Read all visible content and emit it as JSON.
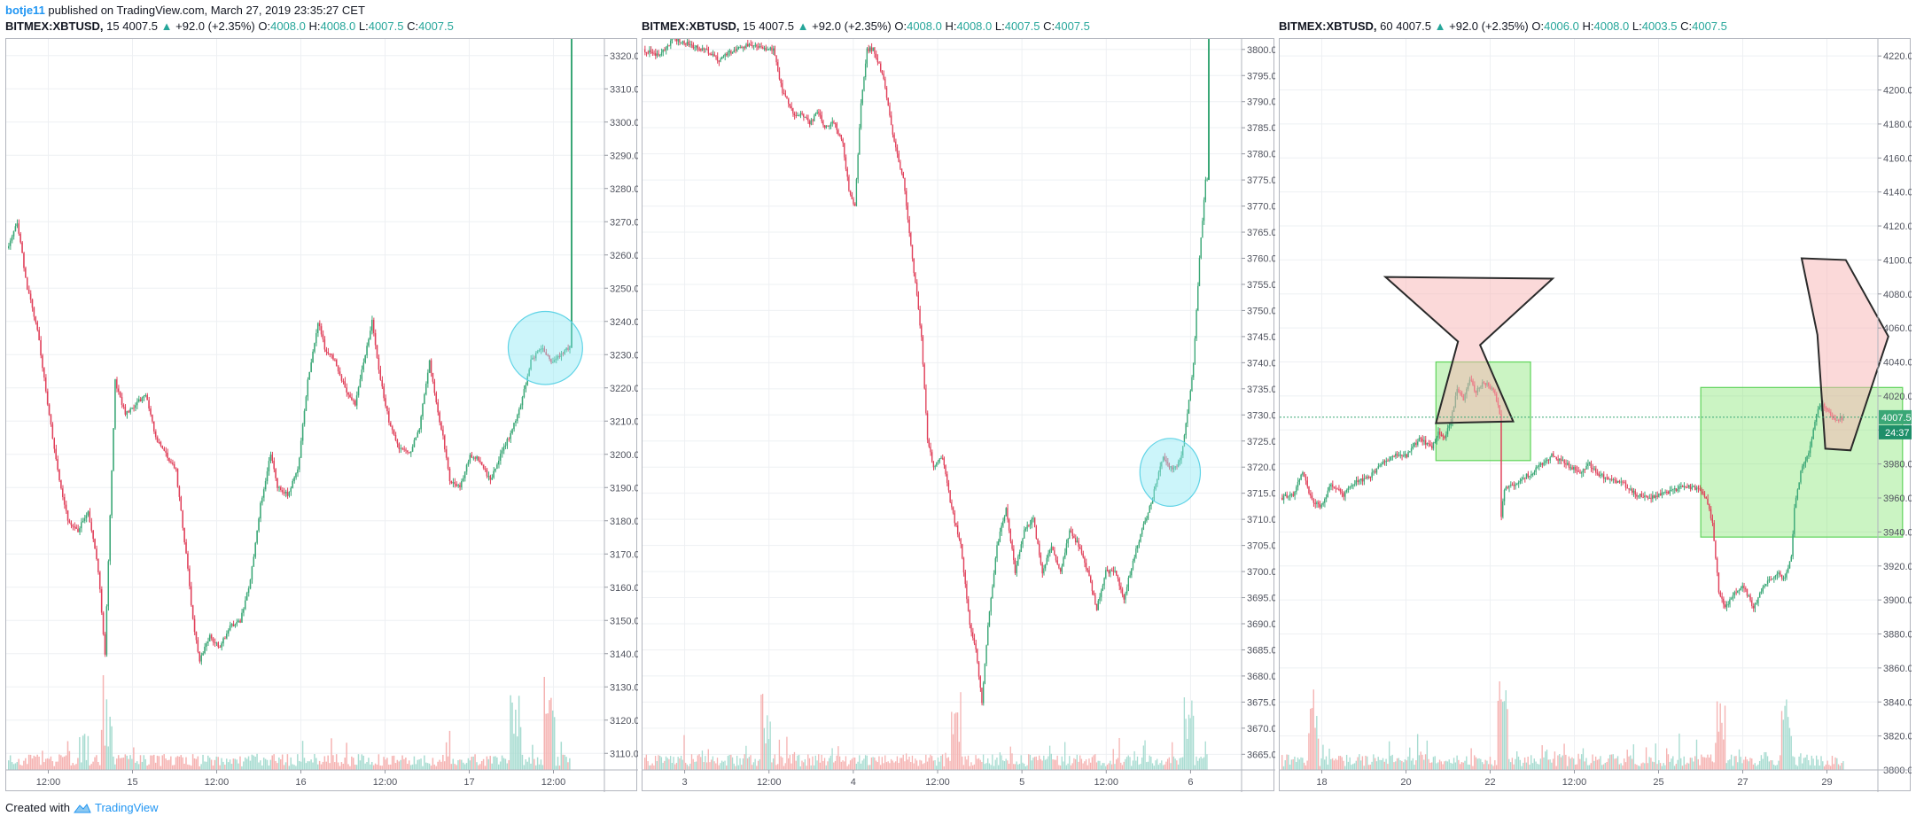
{
  "header": {
    "author": "botje11",
    "published_text": "published on TradingView.com, March 27, 2019 23:35:27 CET"
  },
  "footer": {
    "created_with": "Created with",
    "brand": "TradingView"
  },
  "colors": {
    "up": "#26a69a",
    "down": "#ef5350",
    "up_candle": "#3aa776",
    "down_candle": "#e0405a",
    "grid": "#eef0f3",
    "circle_fill": "#8fe8f5",
    "green_box": "#7ce36a",
    "pink_shape": "#f8b4b4"
  },
  "chart_data": [
    {
      "type": "candlestick",
      "symbol": "BITMEX:XBTUSD",
      "interval": "15",
      "last": "4007.5",
      "change": "+92.0 (+2.35%)",
      "open": "4008.0",
      "high": "4008.0",
      "low": "4007.5",
      "close": "4007.5",
      "ylim": [
        3105,
        3325
      ],
      "yticks": [
        "3320.0",
        "3310.0",
        "3300.0",
        "3290.0",
        "3280.0",
        "3270.0",
        "3260.0",
        "3250.0",
        "3240.0",
        "3230.0",
        "3220.0",
        "3210.0",
        "3200.0",
        "3190.0",
        "3180.0",
        "3170.0",
        "3160.0",
        "3150.0",
        "3140.0",
        "3130.0",
        "3120.0",
        "3110.0"
      ],
      "xticks": [
        "12:00",
        "15",
        "12:00",
        "16",
        "12:00",
        "17",
        "12:00"
      ],
      "path": [
        [
          0,
          3262
        ],
        [
          6,
          3270
        ],
        [
          12,
          3250
        ],
        [
          18,
          3238
        ],
        [
          24,
          3215
        ],
        [
          30,
          3195
        ],
        [
          36,
          3180
        ],
        [
          42,
          3177
        ],
        [
          48,
          3183
        ],
        [
          54,
          3165
        ],
        [
          58,
          3140
        ],
        [
          64,
          3222
        ],
        [
          70,
          3212
        ],
        [
          76,
          3215
        ],
        [
          82,
          3218
        ],
        [
          88,
          3205
        ],
        [
          94,
          3200
        ],
        [
          100,
          3195
        ],
        [
          106,
          3170
        ],
        [
          110,
          3150
        ],
        [
          114,
          3138
        ],
        [
          120,
          3145
        ],
        [
          126,
          3142
        ],
        [
          132,
          3148
        ],
        [
          138,
          3150
        ],
        [
          144,
          3162
        ],
        [
          150,
          3185
        ],
        [
          156,
          3200
        ],
        [
          160,
          3190
        ],
        [
          166,
          3188
        ],
        [
          172,
          3195
        ],
        [
          178,
          3222
        ],
        [
          184,
          3240
        ],
        [
          188,
          3232
        ],
        [
          194,
          3228
        ],
        [
          200,
          3220
        ],
        [
          206,
          3215
        ],
        [
          210,
          3225
        ],
        [
          216,
          3240
        ],
        [
          220,
          3225
        ],
        [
          226,
          3210
        ],
        [
          232,
          3202
        ],
        [
          238,
          3200
        ],
        [
          244,
          3208
        ],
        [
          250,
          3228
        ],
        [
          254,
          3215
        ],
        [
          258,
          3205
        ],
        [
          262,
          3192
        ],
        [
          268,
          3190
        ],
        [
          274,
          3200
        ],
        [
          280,
          3198
        ],
        [
          286,
          3192
        ],
        [
          292,
          3200
        ],
        [
          298,
          3206
        ],
        [
          304,
          3215
        ],
        [
          310,
          3228
        ],
        [
          316,
          3232
        ],
        [
          322,
          3228
        ],
        [
          328,
          3230
        ],
        [
          332,
          3232
        ]
      ],
      "spike": {
        "i": 332,
        "open": 3232,
        "high": 3325
      },
      "volume_peaks": [
        58,
        300,
        320
      ],
      "annotations": [
        {
          "shape": "ellipse",
          "i": 318,
          "price": 3232,
          "rx_i": 22,
          "ry_p": 11
        }
      ]
    },
    {
      "type": "candlestick",
      "symbol": "BITMEX:XBTUSD",
      "interval": "15",
      "last": "4007.5",
      "change": "+92.0 (+2.35%)",
      "open": "4008.0",
      "high": "4008.0",
      "low": "4007.5",
      "close": "4007.5",
      "ylim": [
        3662,
        3802
      ],
      "yticks": [
        "3800.0",
        "3795.0",
        "3790.0",
        "3785.0",
        "3780.0",
        "3775.0",
        "3770.0",
        "3765.0",
        "3760.0",
        "3755.0",
        "3750.0",
        "3745.0",
        "3740.0",
        "3735.0",
        "3730.0",
        "3725.0",
        "3720.0",
        "3715.0",
        "3710.0",
        "3705.0",
        "3700.0",
        "3695.0",
        "3690.0",
        "3685.0",
        "3680.0",
        "3675.0",
        "3670.0",
        "3665.0"
      ],
      "xticks": [
        "3",
        "12:00",
        "4",
        "12:00",
        "5",
        "12:00",
        "6"
      ],
      "path": [
        [
          0,
          3800
        ],
        [
          10,
          3799
        ],
        [
          20,
          3802
        ],
        [
          30,
          3801
        ],
        [
          40,
          3800
        ],
        [
          50,
          3798
        ],
        [
          60,
          3800
        ],
        [
          70,
          3801
        ],
        [
          80,
          3800
        ],
        [
          86,
          3800
        ],
        [
          92,
          3792
        ],
        [
          96,
          3790
        ],
        [
          100,
          3787
        ],
        [
          104,
          3788
        ],
        [
          110,
          3786
        ],
        [
          116,
          3788
        ],
        [
          120,
          3785
        ],
        [
          126,
          3786
        ],
        [
          132,
          3782
        ],
        [
          136,
          3773
        ],
        [
          140,
          3770
        ],
        [
          144,
          3790
        ],
        [
          148,
          3800
        ],
        [
          152,
          3800
        ],
        [
          156,
          3797
        ],
        [
          160,
          3793
        ],
        [
          166,
          3782
        ],
        [
          172,
          3775
        ],
        [
          178,
          3760
        ],
        [
          184,
          3745
        ],
        [
          188,
          3725
        ],
        [
          192,
          3720
        ],
        [
          198,
          3722
        ],
        [
          204,
          3712
        ],
        [
          210,
          3705
        ],
        [
          216,
          3690
        ],
        [
          220,
          3685
        ],
        [
          224,
          3675
        ],
        [
          228,
          3690
        ],
        [
          234,
          3705
        ],
        [
          240,
          3712
        ],
        [
          246,
          3700
        ],
        [
          252,
          3708
        ],
        [
          258,
          3710
        ],
        [
          264,
          3700
        ],
        [
          270,
          3705
        ],
        [
          276,
          3700
        ],
        [
          282,
          3708
        ],
        [
          288,
          3705
        ],
        [
          294,
          3700
        ],
        [
          300,
          3693
        ],
        [
          306,
          3700
        ],
        [
          312,
          3700
        ],
        [
          318,
          3695
        ],
        [
          324,
          3702
        ],
        [
          330,
          3708
        ],
        [
          336,
          3713
        ],
        [
          340,
          3718
        ],
        [
          344,
          3722
        ],
        [
          348,
          3720
        ],
        [
          352,
          3720
        ],
        [
          356,
          3722
        ],
        [
          360,
          3730
        ],
        [
          364,
          3740
        ],
        [
          368,
          3760
        ],
        [
          372,
          3775
        ]
      ],
      "spike": {
        "i": 372,
        "open": 3775,
        "high": 3802
      },
      "volume_peaks": [
        80,
        206,
        360
      ],
      "annotations": [
        {
          "shape": "ellipse",
          "i": 348,
          "price": 3719,
          "rx_i": 20,
          "ry_p": 6.5
        }
      ]
    },
    {
      "type": "candlestick",
      "symbol": "BITMEX:XBTUSD",
      "interval": "60",
      "last": "4007.5",
      "change": "+92.0 (+2.35%)",
      "open": "4006.0",
      "high": "4008.0",
      "low": "4003.5",
      "close": "4007.5",
      "ylim": [
        3800,
        4230
      ],
      "yticks": [
        "4220.0",
        "4200.0",
        "4180.0",
        "4160.0",
        "4140.0",
        "4120.0",
        "4100.0",
        "4080.0",
        "4060.0",
        "4040.0",
        "4020.0",
        "4000.0",
        "3980.0",
        "3960.0",
        "3940.0",
        "3920.0",
        "3900.0",
        "3880.0",
        "3860.0",
        "3840.0",
        "3820.0",
        "3800.0"
      ],
      "xticks": [
        "18",
        "20",
        "22",
        "12:00",
        "25",
        "27",
        "29"
      ],
      "price_label": "4007.5",
      "countdown_label": "24:37",
      "path": [
        [
          0,
          3960
        ],
        [
          8,
          3962
        ],
        [
          14,
          3975
        ],
        [
          20,
          3958
        ],
        [
          26,
          3955
        ],
        [
          32,
          3968
        ],
        [
          40,
          3962
        ],
        [
          48,
          3970
        ],
        [
          56,
          3972
        ],
        [
          64,
          3980
        ],
        [
          72,
          3985
        ],
        [
          80,
          3985
        ],
        [
          88,
          3995
        ],
        [
          96,
          3990
        ],
        [
          100,
          3998
        ],
        [
          104,
          3996
        ],
        [
          108,
          4005
        ],
        [
          112,
          4025
        ],
        [
          116,
          4018
        ],
        [
          120,
          4030
        ],
        [
          124,
          4022
        ],
        [
          128,
          4028
        ],
        [
          132,
          4026
        ],
        [
          136,
          4022
        ],
        [
          139,
          4010
        ],
        [
          140,
          3950
        ],
        [
          142,
          3965
        ],
        [
          148,
          3968
        ],
        [
          154,
          3972
        ],
        [
          160,
          3975
        ],
        [
          166,
          3980
        ],
        [
          172,
          3985
        ],
        [
          178,
          3982
        ],
        [
          184,
          3978
        ],
        [
          190,
          3975
        ],
        [
          196,
          3980
        ],
        [
          202,
          3974
        ],
        [
          210,
          3970
        ],
        [
          218,
          3968
        ],
        [
          226,
          3962
        ],
        [
          234,
          3960
        ],
        [
          242,
          3962
        ],
        [
          250,
          3965
        ],
        [
          258,
          3967
        ],
        [
          266,
          3965
        ],
        [
          270,
          3960
        ],
        [
          274,
          3945
        ],
        [
          278,
          3905
        ],
        [
          282,
          3895
        ],
        [
          288,
          3905
        ],
        [
          294,
          3908
        ],
        [
          300,
          3895
        ],
        [
          306,
          3908
        ],
        [
          310,
          3912
        ],
        [
          316,
          3915
        ],
        [
          320,
          3912
        ],
        [
          324,
          3925
        ],
        [
          326,
          3955
        ],
        [
          330,
          3975
        ],
        [
          334,
          3985
        ],
        [
          336,
          3990
        ],
        [
          340,
          4010
        ],
        [
          344,
          4015
        ],
        [
          348,
          4010
        ],
        [
          352,
          4005
        ],
        [
          356,
          4007
        ]
      ],
      "volume_peaks": [
        20,
        140,
        278,
        320
      ],
      "annotations": [
        {
          "shape": "rect",
          "i0": 98,
          "i1": 158,
          "p0": 3982,
          "p1": 4040
        },
        {
          "shape": "rect",
          "i0": 266,
          "i1": 394,
          "p0": 3937,
          "p1": 4025
        },
        {
          "shape": "polygon",
          "pts": [
            [
              66,
              4090
            ],
            [
              172,
              4089
            ],
            [
              126,
              4050
            ],
            [
              147,
              4005
            ],
            [
              98,
              4004
            ],
            [
              112,
              4052
            ]
          ]
        },
        {
          "shape": "polygon",
          "pts": [
            [
              340,
              4056
            ],
            [
              345,
              3989
            ],
            [
              361,
              3988
            ],
            [
              385,
              4055
            ],
            [
              358,
              4100
            ],
            [
              330,
              4101
            ]
          ]
        }
      ]
    }
  ]
}
